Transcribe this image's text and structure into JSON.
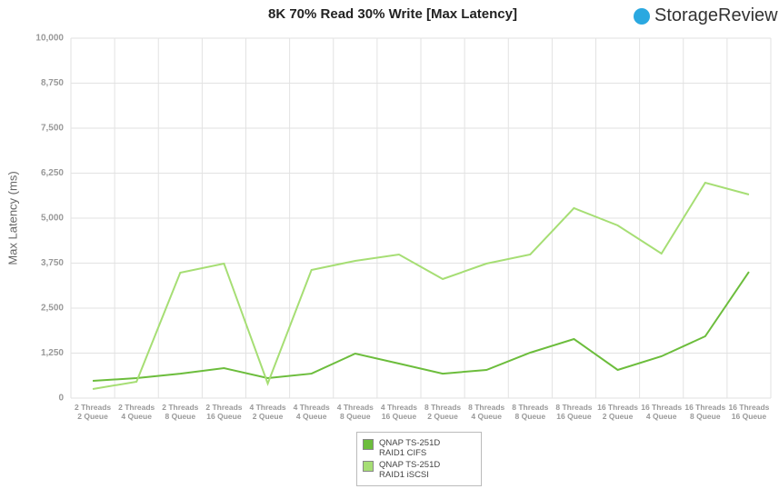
{
  "logo": "StorageReview",
  "chart_data": {
    "type": "line",
    "title": "8K 70% Read 30% Write [Max Latency]",
    "y_label": "Max Latency (ms)",
    "categories": [
      [
        "2 Threads",
        "2 Queue"
      ],
      [
        "2 Threads",
        "4 Queue"
      ],
      [
        "2 Threads",
        "8 Queue"
      ],
      [
        "2 Threads",
        "16 Queue"
      ],
      [
        "4 Threads",
        "2 Queue"
      ],
      [
        "4 Threads",
        "4 Queue"
      ],
      [
        "4 Threads",
        "8 Queue"
      ],
      [
        "4 Threads",
        "16 Queue"
      ],
      [
        "8 Threads",
        "2 Queue"
      ],
      [
        "8 Threads",
        "4 Queue"
      ],
      [
        "8 Threads",
        "8 Queue"
      ],
      [
        "8 Threads",
        "16 Queue"
      ],
      [
        "16 Threads",
        "2 Queue"
      ],
      [
        "16 Threads",
        "4 Queue"
      ],
      [
        "16 Threads",
        "8 Queue"
      ],
      [
        "16 Threads",
        "16 Queue"
      ]
    ],
    "series": [
      {
        "name": "QNAP TS-251D RAID1 CIFS",
        "color": "#6cbd3c",
        "values": [
          480,
          555,
          680,
          833,
          555,
          680,
          1237,
          960,
          680,
          783,
          1263,
          1641,
          783,
          1162,
          1717,
          3510
        ]
      },
      {
        "name": "QNAP TS-251D RAID1 iSCSI",
        "color": "#a6de74",
        "values": [
          253,
          455,
          3485,
          3737,
          404,
          3561,
          3813,
          3990,
          3308,
          3737,
          3990,
          5278,
          4798,
          4015,
          5985,
          5657
        ]
      }
    ],
    "ylim": [
      0,
      10000
    ],
    "yticks": [
      0,
      {
        "value": 1250,
        "label": "1,250"
      },
      {
        "value": 2500,
        "label": "2,500"
      },
      {
        "value": 3750,
        "label": "3,750"
      },
      {
        "value": 5000,
        "label": "5,000"
      },
      {
        "value": 6250,
        "label": "6,250"
      },
      {
        "value": 7500,
        "label": "7,500"
      },
      {
        "value": 8750,
        "label": "8,750"
      },
      {
        "value": 10000,
        "label": "10,000"
      }
    ],
    "grid": true
  }
}
